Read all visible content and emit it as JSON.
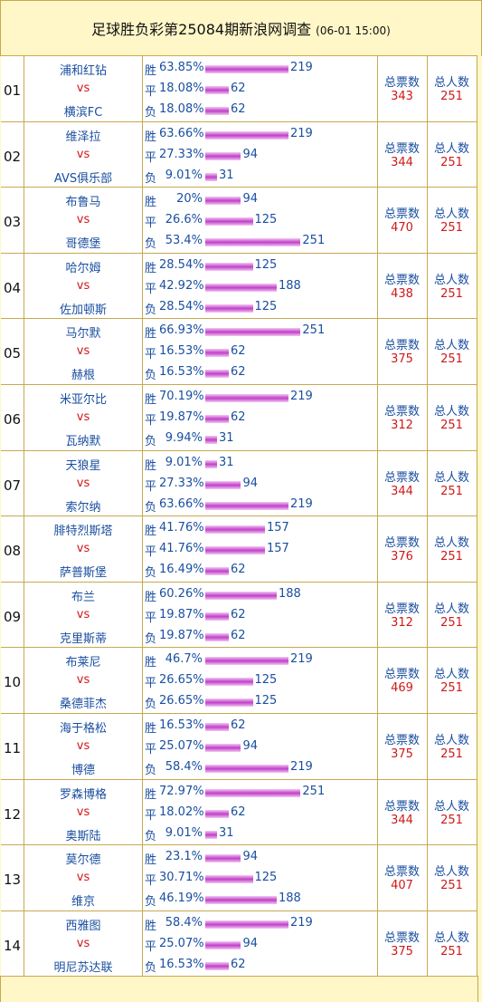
{
  "header": {
    "title": "足球胜负彩第25084期新浪网调查",
    "time": "(06-01 15:00)"
  },
  "labels": {
    "vs": "vs",
    "outcomes": [
      "胜",
      "平",
      "负"
    ],
    "total_votes": "总票数",
    "total_people": "总人数"
  },
  "matches": [
    {
      "no": "01",
      "home": "浦和红钻",
      "away": "横滨FC",
      "results": [
        {
          "pct": "63.85%",
          "count": 219
        },
        {
          "pct": "18.08%",
          "count": 62
        },
        {
          "pct": "18.08%",
          "count": 62
        }
      ],
      "total_votes": 343,
      "total_people": 251
    },
    {
      "no": "02",
      "home": "维泽拉",
      "away": "AVS俱乐部",
      "results": [
        {
          "pct": "63.66%",
          "count": 219
        },
        {
          "pct": "27.33%",
          "count": 94
        },
        {
          "pct": "9.01%",
          "count": 31
        }
      ],
      "total_votes": 344,
      "total_people": 251
    },
    {
      "no": "03",
      "home": "布鲁马",
      "away": "哥德堡",
      "results": [
        {
          "pct": "20%",
          "count": 94
        },
        {
          "pct": "26.6%",
          "count": 125
        },
        {
          "pct": "53.4%",
          "count": 251
        }
      ],
      "total_votes": 470,
      "total_people": 251
    },
    {
      "no": "04",
      "home": "哈尔姆",
      "away": "佐加顿斯",
      "results": [
        {
          "pct": "28.54%",
          "count": 125
        },
        {
          "pct": "42.92%",
          "count": 188
        },
        {
          "pct": "28.54%",
          "count": 125
        }
      ],
      "total_votes": 438,
      "total_people": 251
    },
    {
      "no": "05",
      "home": "马尔默",
      "away": "赫根",
      "results": [
        {
          "pct": "66.93%",
          "count": 251
        },
        {
          "pct": "16.53%",
          "count": 62
        },
        {
          "pct": "16.53%",
          "count": 62
        }
      ],
      "total_votes": 375,
      "total_people": 251
    },
    {
      "no": "06",
      "home": "米亚尔比",
      "away": "瓦纳默",
      "results": [
        {
          "pct": "70.19%",
          "count": 219
        },
        {
          "pct": "19.87%",
          "count": 62
        },
        {
          "pct": "9.94%",
          "count": 31
        }
      ],
      "total_votes": 312,
      "total_people": 251
    },
    {
      "no": "07",
      "home": "天狼星",
      "away": "索尔纳",
      "results": [
        {
          "pct": "9.01%",
          "count": 31
        },
        {
          "pct": "27.33%",
          "count": 94
        },
        {
          "pct": "63.66%",
          "count": 219
        }
      ],
      "total_votes": 344,
      "total_people": 251
    },
    {
      "no": "08",
      "home": "腓特烈斯塔",
      "away": "萨普斯堡",
      "results": [
        {
          "pct": "41.76%",
          "count": 157
        },
        {
          "pct": "41.76%",
          "count": 157
        },
        {
          "pct": "16.49%",
          "count": 62
        }
      ],
      "total_votes": 376,
      "total_people": 251
    },
    {
      "no": "09",
      "home": "布兰",
      "away": "克里斯蒂",
      "results": [
        {
          "pct": "60.26%",
          "count": 188
        },
        {
          "pct": "19.87%",
          "count": 62
        },
        {
          "pct": "19.87%",
          "count": 62
        }
      ],
      "total_votes": 312,
      "total_people": 251
    },
    {
      "no": "10",
      "home": "布莱尼",
      "away": "桑德菲杰",
      "results": [
        {
          "pct": "46.7%",
          "count": 219
        },
        {
          "pct": "26.65%",
          "count": 125
        },
        {
          "pct": "26.65%",
          "count": 125
        }
      ],
      "total_votes": 469,
      "total_people": 251
    },
    {
      "no": "11",
      "home": "海于格松",
      "away": "博德",
      "results": [
        {
          "pct": "16.53%",
          "count": 62
        },
        {
          "pct": "25.07%",
          "count": 94
        },
        {
          "pct": "58.4%",
          "count": 219
        }
      ],
      "total_votes": 375,
      "total_people": 251
    },
    {
      "no": "12",
      "home": "罗森博格",
      "away": "奥斯陆",
      "results": [
        {
          "pct": "72.97%",
          "count": 251
        },
        {
          "pct": "18.02%",
          "count": 62
        },
        {
          "pct": "9.01%",
          "count": 31
        }
      ],
      "total_votes": 344,
      "total_people": 251
    },
    {
      "no": "13",
      "home": "莫尔德",
      "away": "维京",
      "results": [
        {
          "pct": "23.1%",
          "count": 94
        },
        {
          "pct": "30.71%",
          "count": 125
        },
        {
          "pct": "46.19%",
          "count": 188
        }
      ],
      "total_votes": 407,
      "total_people": 251
    },
    {
      "no": "14",
      "home": "西雅图",
      "away": "明尼苏达联",
      "results": [
        {
          "pct": "58.4%",
          "count": 219
        },
        {
          "pct": "25.07%",
          "count": 94
        },
        {
          "pct": "16.53%",
          "count": 62
        }
      ],
      "total_votes": 375,
      "total_people": 251
    }
  ]
}
